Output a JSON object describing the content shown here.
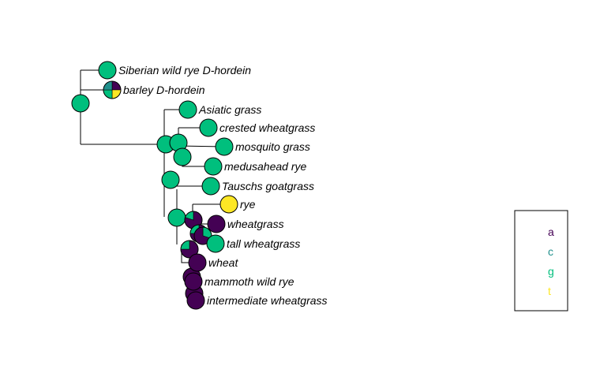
{
  "palette": {
    "a": "#440154",
    "c": "#21908C",
    "g": "#00BF7D",
    "t": "#FDE725"
  },
  "tips": [
    {
      "id": "t1",
      "label": "Siberian wild rye D-hordein",
      "state": "g"
    },
    {
      "id": "t2",
      "label": "barley D-hordein",
      "state": "mixed"
    },
    {
      "id": "t3",
      "label": "Asiatic grass",
      "state": "g"
    },
    {
      "id": "t4",
      "label": "crested wheatgrass",
      "state": "g"
    },
    {
      "id": "t5",
      "label": "mosquito grass",
      "state": "g"
    },
    {
      "id": "t6",
      "label": "medusahead rye",
      "state": "g"
    },
    {
      "id": "t7",
      "label": "Tauschs goatgrass",
      "state": "g"
    },
    {
      "id": "t8",
      "label": "rye",
      "state": "t"
    },
    {
      "id": "t9",
      "label": "wheatgrass",
      "state": "a"
    },
    {
      "id": "t10",
      "label": "tall wheatgrass",
      "state": "g"
    },
    {
      "id": "t11",
      "label": "wheat",
      "state": "a"
    },
    {
      "id": "t12",
      "label": "mammoth wild rye",
      "state": "a"
    },
    {
      "id": "t13",
      "label": "intermediate wheatgrass",
      "state": "a"
    }
  ],
  "legend": {
    "items": [
      {
        "key": "a",
        "label": "a"
      },
      {
        "key": "c",
        "label": "c"
      },
      {
        "key": "g",
        "label": "g"
      },
      {
        "key": "t",
        "label": "t"
      }
    ]
  }
}
